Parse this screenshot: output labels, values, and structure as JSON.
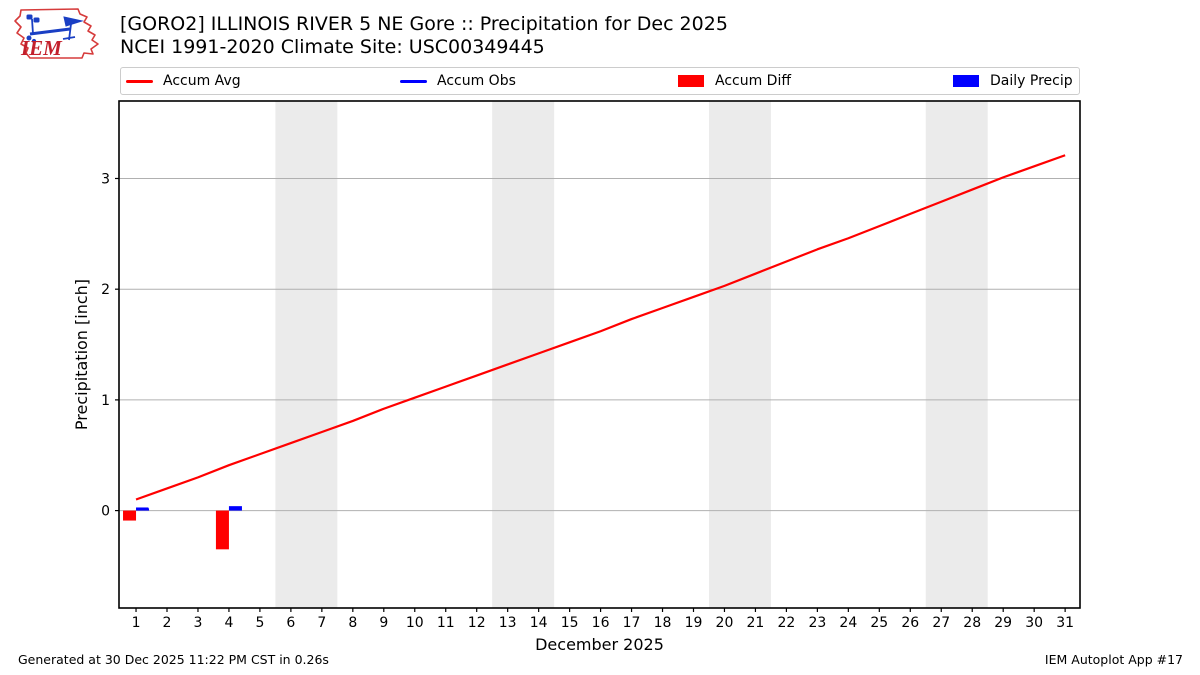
{
  "colors": {
    "avg_line": "#ff0000",
    "obs_line": "#0000ff",
    "diff_bar": "#ff0000",
    "precip_bar": "#0000ff",
    "weekend_band": "#ebebeb",
    "gridline": "#b0b0b0",
    "frame": "#000000",
    "legend_border": "#cccccc",
    "logo_outline": "#d63b3b",
    "logo_glyph": "#1a3fc4",
    "logo_text_color": "#c3202c"
  },
  "logo": {
    "text": "IEM"
  },
  "legend": {
    "items": [
      {
        "label": "Accum Avg",
        "swatch": "line",
        "color": "#ff0000"
      },
      {
        "label": "Accum Obs",
        "swatch": "line",
        "color": "#0000ff"
      },
      {
        "label": "Accum Diff",
        "swatch": "patch",
        "color": "#ff0000"
      },
      {
        "label": "Daily Precip",
        "swatch": "patch",
        "color": "#0000ff"
      }
    ]
  },
  "chart_data": {
    "type": "line+bar",
    "title": "[GORO2] ILLINOIS RIVER 5 NE Gore :: Precipitation for Dec 2025",
    "subtitle": "NCEI 1991-2020 Climate Site: USC00349445",
    "xlabel": "December 2025",
    "ylabel": "Precipitation [inch]",
    "xlim": [
      0.45,
      31.48
    ],
    "ylim": [
      -0.88,
      3.7
    ],
    "xticks": [
      1,
      2,
      3,
      4,
      5,
      6,
      7,
      8,
      9,
      10,
      11,
      12,
      13,
      14,
      15,
      16,
      17,
      18,
      19,
      20,
      21,
      22,
      23,
      24,
      25,
      26,
      27,
      28,
      29,
      30,
      31
    ],
    "yticks": [
      0,
      1,
      2,
      3
    ],
    "grid": "horizontal",
    "weekend_bands": [
      [
        5.5,
        7.5
      ],
      [
        12.5,
        14.5
      ],
      [
        19.5,
        21.5
      ],
      [
        26.5,
        28.5
      ]
    ],
    "series": [
      {
        "name": "Accum Avg",
        "type": "line",
        "color": "#ff0000",
        "stroke_width": 2.2,
        "x": [
          1,
          2,
          3,
          4,
          5,
          6,
          7,
          8,
          9,
          10,
          11,
          12,
          13,
          14,
          15,
          16,
          17,
          18,
          19,
          20,
          21,
          22,
          23,
          24,
          25,
          26,
          27,
          28,
          29,
          30,
          31
        ],
        "y": [
          0.1,
          0.2,
          0.3,
          0.41,
          0.51,
          0.61,
          0.71,
          0.81,
          0.92,
          1.02,
          1.12,
          1.22,
          1.32,
          1.42,
          1.52,
          1.62,
          1.73,
          1.83,
          1.93,
          2.03,
          2.14,
          2.25,
          2.36,
          2.46,
          2.57,
          2.68,
          2.79,
          2.9,
          3.01,
          3.11,
          3.21
        ]
      },
      {
        "name": "Accum Obs",
        "type": "line",
        "color": "#0000ff",
        "stroke_width": 1.8,
        "x": [
          1,
          1.4
        ],
        "y": [
          0.02,
          0.02
        ]
      },
      {
        "name": "Accum Diff",
        "type": "bar",
        "color": "#ff0000",
        "offset": -0.42,
        "bar_width": 0.42,
        "x": [
          1,
          4
        ],
        "y": [
          -0.09,
          -0.35
        ]
      },
      {
        "name": "Daily Precip",
        "type": "bar",
        "color": "#0000ff",
        "offset": 0,
        "bar_width": 0.42,
        "x": [
          1,
          4
        ],
        "y": [
          0.02,
          0.04
        ]
      }
    ]
  },
  "footer": {
    "left": "Generated at 30 Dec 2025 11:22 PM CST in 0.26s",
    "right": "IEM Autoplot App #17"
  }
}
